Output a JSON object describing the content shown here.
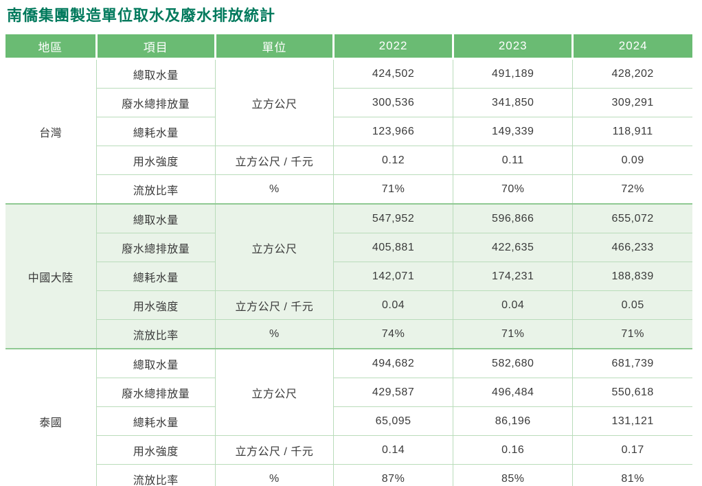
{
  "title": "南僑集團製造單位取水及廢水排放統計",
  "colors": {
    "title_text": "#00795C",
    "header_background": "#6ABB73",
    "header_text": "#FFFFFF",
    "highlight_section_background": "#E9F3E8",
    "grid_border": "#B9DCBA",
    "section_border": "#8FC992",
    "body_text": "#3A3A3A"
  },
  "table": {
    "headers": [
      "地區",
      "項目",
      "單位",
      "2022",
      "2023",
      "2024"
    ],
    "sections": [
      {
        "region": "台灣",
        "highlighted": false,
        "rows": [
          {
            "item": "總取水量",
            "unit": "立方公尺",
            "values": [
              "424,502",
              "491,189",
              "428,202"
            ]
          },
          {
            "item": "廢水總排放量",
            "unit": null,
            "values": [
              "300,536",
              "341,850",
              "309,291"
            ]
          },
          {
            "item": "總耗水量",
            "unit": null,
            "values": [
              "123,966",
              "149,339",
              "118,911"
            ]
          },
          {
            "item": "用水強度",
            "unit": "立方公尺 / 千元",
            "values": [
              "0.12",
              "0.11",
              "0.09"
            ]
          },
          {
            "item": "流放比率",
            "unit": "%",
            "values": [
              "71%",
              "70%",
              "72%"
            ]
          }
        ]
      },
      {
        "region": "中國大陸",
        "highlighted": true,
        "rows": [
          {
            "item": "總取水量",
            "unit": "立方公尺",
            "values": [
              "547,952",
              "596,866",
              "655,072"
            ]
          },
          {
            "item": "廢水總排放量",
            "unit": null,
            "values": [
              "405,881",
              "422,635",
              "466,233"
            ]
          },
          {
            "item": "總耗水量",
            "unit": null,
            "values": [
              "142,071",
              "174,231",
              "188,839"
            ]
          },
          {
            "item": "用水強度",
            "unit": "立方公尺 / 千元",
            "values": [
              "0.04",
              "0.04",
              "0.05"
            ]
          },
          {
            "item": "流放比率",
            "unit": "%",
            "values": [
              "74%",
              "71%",
              "71%"
            ]
          }
        ]
      },
      {
        "region": "泰國",
        "highlighted": false,
        "rows": [
          {
            "item": "總取水量",
            "unit": "立方公尺",
            "values": [
              "494,682",
              "582,680",
              "681,739"
            ]
          },
          {
            "item": "廢水總排放量",
            "unit": null,
            "values": [
              "429,587",
              "496,484",
              "550,618"
            ]
          },
          {
            "item": "總耗水量",
            "unit": null,
            "values": [
              "65,095",
              "86,196",
              "131,121"
            ]
          },
          {
            "item": "用水強度",
            "unit": "立方公尺 / 千元",
            "values": [
              "0.14",
              "0.16",
              "0.17"
            ]
          },
          {
            "item": "流放比率",
            "unit": "%",
            "values": [
              "87%",
              "85%",
              "81%"
            ]
          }
        ]
      }
    ]
  }
}
